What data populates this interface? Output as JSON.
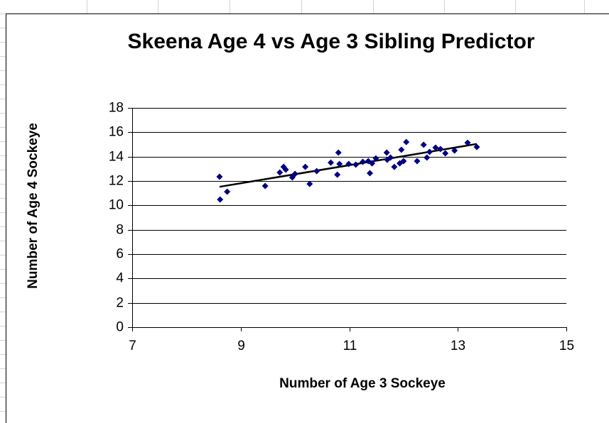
{
  "chart_data": {
    "type": "scatter",
    "title": "Skeena Age 4 vs Age 3 Sibling Predictor",
    "xlabel": "Number of Age 3 Sockeye",
    "ylabel": "Number of Age 4 Sockeye",
    "color": "#000080",
    "trendline": "linear",
    "grid": true,
    "xlim": [
      7,
      15
    ],
    "xticks": [
      7,
      9,
      11,
      13,
      15
    ],
    "ylim": [
      0,
      18
    ],
    "yticks": [
      0,
      2,
      4,
      6,
      8,
      10,
      12,
      14,
      16,
      18
    ],
    "x": [
      8.61,
      8.62,
      8.75,
      9.45,
      9.72,
      9.79,
      9.83,
      9.95,
      10.0,
      10.19,
      10.27,
      10.4,
      10.66,
      10.78,
      10.8,
      10.82,
      10.99,
      11.12,
      11.25,
      11.35,
      11.38,
      11.42,
      11.49,
      11.69,
      11.7,
      11.76,
      11.83,
      11.93,
      11.96,
      12.0,
      12.05,
      12.25,
      12.37,
      12.43,
      12.48,
      12.59,
      12.68,
      12.77,
      12.94,
      13.18,
      13.35
    ],
    "values": [
      12.35,
      10.48,
      11.12,
      11.59,
      12.7,
      13.16,
      12.93,
      12.29,
      12.58,
      13.16,
      11.76,
      12.81,
      13.51,
      12.52,
      14.33,
      13.4,
      13.4,
      13.34,
      13.57,
      13.63,
      12.64,
      13.45,
      13.86,
      14.33,
      13.74,
      13.92,
      13.16,
      13.45,
      14.56,
      13.63,
      15.2,
      13.63,
      14.97,
      13.92,
      14.39,
      14.74,
      14.62,
      14.27,
      14.5,
      15.14,
      14.79
    ]
  }
}
